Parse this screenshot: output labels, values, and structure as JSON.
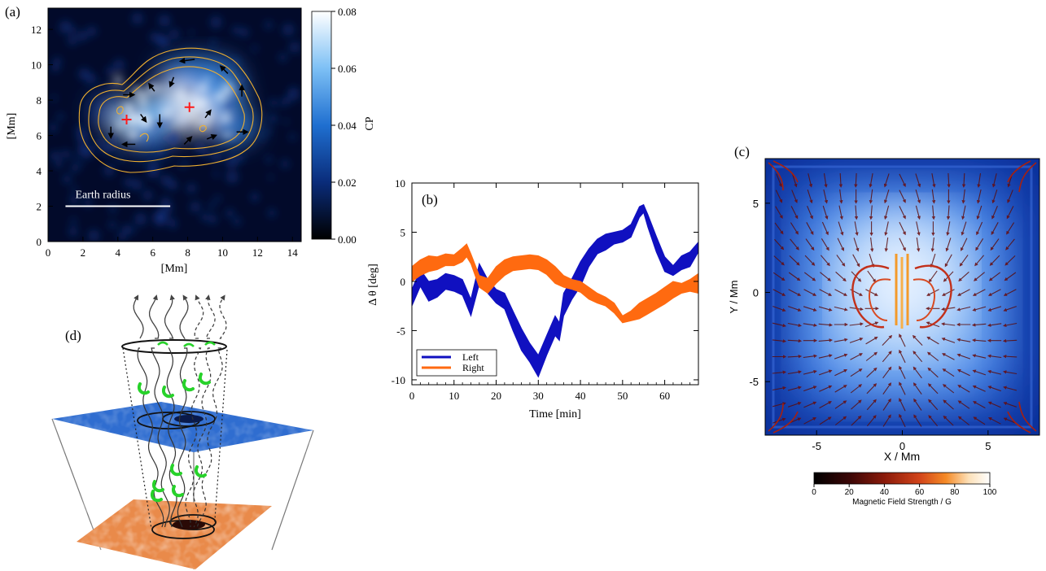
{
  "panel_labels": {
    "a": "(a)",
    "b": "(b)",
    "c": "(c)",
    "d": "(d)"
  },
  "chart_data": [
    {
      "type": "heatmap",
      "panel": "a",
      "xlabel": "[Mm]",
      "ylabel": "[Mm]",
      "xlim": [
        0,
        14.5
      ],
      "ylim": [
        0,
        13.2
      ],
      "xticks": [
        "0",
        "2",
        "4",
        "6",
        "8",
        "10",
        "12",
        "14"
      ],
      "yticks": [
        "0",
        "2",
        "4",
        "6",
        "8",
        "10",
        "12"
      ],
      "colorbar": {
        "label": "CP",
        "range": [
          0,
          0.08
        ],
        "ticks": [
          "0.00",
          "0.02",
          "0.04",
          "0.06",
          "0.08"
        ],
        "colors": [
          "#000000",
          "#0a2c7a",
          "#1f6fd0",
          "#7dc0f5",
          "#ffffff"
        ]
      },
      "scale_bar": {
        "label": "Earth radius",
        "x": [
          1.0,
          7.0
        ],
        "y": 2.0
      },
      "markers": [
        {
          "x": 4.5,
          "y": 6.9
        },
        {
          "x": 8.1,
          "y": 7.6
        }
      ],
      "blobs": [
        {
          "x": 4.7,
          "y": 6.9,
          "sx": 1.3,
          "sy": 1.1,
          "v": 0.07
        },
        {
          "x": 8.0,
          "y": 7.7,
          "sx": 2.0,
          "sy": 1.5,
          "v": 0.085
        },
        {
          "x": 6.3,
          "y": 7.3,
          "sx": 1.3,
          "sy": 1.1,
          "v": 0.055
        },
        {
          "x": 9.8,
          "y": 8.4,
          "sx": 1.5,
          "sy": 1.0,
          "v": 0.05
        },
        {
          "x": 8.6,
          "y": 9.6,
          "sx": 2.4,
          "sy": 0.9,
          "v": 0.045
        },
        {
          "x": 10.6,
          "y": 6.5,
          "sx": 1.4,
          "sy": 1.0,
          "v": 0.045
        },
        {
          "x": 5.8,
          "y": 5.7,
          "sx": 1.2,
          "sy": 0.7,
          "v": 0.035
        },
        {
          "x": 3.2,
          "y": 7.4,
          "sx": 0.8,
          "sy": 0.9,
          "v": 0.03
        }
      ],
      "flow_arrows": [
        {
          "x": 4.3,
          "y": 8.3,
          "dx": 0.6,
          "dy": 0
        },
        {
          "x": 6.1,
          "y": 8.5,
          "dx": -0.3,
          "dy": 0.4
        },
        {
          "x": 7.2,
          "y": 9.3,
          "dx": -0.2,
          "dy": -0.5
        },
        {
          "x": 8.4,
          "y": 10.3,
          "dx": -0.8,
          "dy": -0.1
        },
        {
          "x": 10.3,
          "y": 9.5,
          "dx": -0.4,
          "dy": 0.4
        },
        {
          "x": 11.1,
          "y": 8.2,
          "dx": 0,
          "dy": 0.6
        },
        {
          "x": 10.8,
          "y": 6.2,
          "dx": 0.6,
          "dy": 0
        },
        {
          "x": 9.1,
          "y": 5.8,
          "dx": 0.5,
          "dy": 0.2
        },
        {
          "x": 7.8,
          "y": 5.5,
          "dx": 0.4,
          "dy": 0.4
        },
        {
          "x": 5.0,
          "y": 5.5,
          "dx": -0.7,
          "dy": 0
        },
        {
          "x": 3.6,
          "y": 6.5,
          "dx": 0,
          "dy": -0.6
        },
        {
          "x": 5.3,
          "y": 7.2,
          "dx": 0.3,
          "dy": -0.4
        },
        {
          "x": 6.4,
          "y": 7.2,
          "dx": 0,
          "dy": -0.7
        },
        {
          "x": 9.0,
          "y": 7.0,
          "dx": 0.3,
          "dy": 0.4
        }
      ]
    },
    {
      "type": "area",
      "panel": "b",
      "xlabel": "Time [min]",
      "ylabel": "Δ θ [deg]",
      "xlim": [
        0,
        68
      ],
      "ylim": [
        -10.5,
        10
      ],
      "xticks": [
        0,
        10,
        20,
        30,
        40,
        50,
        60
      ],
      "yticks": [
        -10,
        -5,
        0,
        5,
        10
      ],
      "legend_position": "bottom-left",
      "series": [
        {
          "name": "Left",
          "color": "#1010c0",
          "x": [
            0,
            2,
            4,
            6,
            8,
            10,
            12,
            14,
            16,
            18,
            20,
            22,
            24,
            26,
            28,
            30,
            32,
            34,
            35,
            36,
            38,
            40,
            42,
            44,
            46,
            48,
            50,
            52,
            54,
            55,
            56,
            58,
            60,
            62,
            64,
            66,
            68
          ],
          "lower": [
            -2.5,
            -0.5,
            -2.0,
            -1.6,
            -0.8,
            -1.0,
            -1.4,
            -3.5,
            -0.3,
            -1.2,
            -2.2,
            -2.8,
            -5.0,
            -7.0,
            -8.2,
            -9.7,
            -7.5,
            -5.5,
            -6.0,
            -3.5,
            -1.8,
            -0.5,
            1.5,
            2.8,
            3.2,
            3.8,
            4.0,
            4.5,
            6.5,
            7.0,
            5.5,
            3.0,
            1.0,
            0.6,
            1.2,
            1.5,
            3.0
          ],
          "upper": [
            -0.8,
            1.2,
            0.0,
            0.2,
            0.8,
            0.6,
            0.2,
            -1.8,
            1.8,
            0.2,
            -0.8,
            -1.2,
            -3.0,
            -4.8,
            -6.3,
            -7.5,
            -5.5,
            -3.5,
            -4.2,
            -1.2,
            0.3,
            2.0,
            3.3,
            4.3,
            4.8,
            5.0,
            5.2,
            5.8,
            7.6,
            7.8,
            6.8,
            4.6,
            2.5,
            1.6,
            2.6,
            3.0,
            4.0
          ]
        },
        {
          "name": "Right",
          "color": "#ff6a10",
          "x": [
            0,
            2,
            4,
            6,
            8,
            10,
            12,
            13,
            14,
            16,
            18,
            20,
            22,
            24,
            26,
            28,
            30,
            32,
            34,
            36,
            38,
            40,
            42,
            44,
            46,
            48,
            50,
            52,
            54,
            56,
            58,
            60,
            62,
            64,
            66,
            68
          ],
          "lower": [
            0.0,
            0.6,
            1.0,
            1.2,
            1.6,
            1.6,
            2.0,
            2.5,
            1.8,
            -0.6,
            -1.2,
            -0.2,
            0.6,
            1.1,
            1.2,
            1.3,
            1.2,
            0.7,
            -0.2,
            -0.6,
            -0.8,
            -1.1,
            -1.8,
            -2.2,
            -2.5,
            -3.2,
            -4.2,
            -4.0,
            -3.8,
            -3.3,
            -2.8,
            -2.3,
            -1.7,
            -1.2,
            -1.0,
            -1.2
          ],
          "upper": [
            1.5,
            2.2,
            2.6,
            2.5,
            2.8,
            2.7,
            3.4,
            3.8,
            2.8,
            0.6,
            0.3,
            1.5,
            2.2,
            2.5,
            2.6,
            2.7,
            2.6,
            2.2,
            1.5,
            0.6,
            0.2,
            0.0,
            -0.6,
            -1.2,
            -1.6,
            -2.2,
            -3.5,
            -3.0,
            -2.2,
            -1.7,
            -1.2,
            -0.6,
            0.0,
            -0.2,
            0.2,
            0.8
          ]
        }
      ]
    },
    {
      "type": "heatmap",
      "panel": "c",
      "xlabel": "X / Mm",
      "ylabel": "Y / Mm",
      "xlim": [
        -8,
        8
      ],
      "ylim": [
        -8,
        7.5
      ],
      "xticks": [
        "-5",
        "0",
        "5"
      ],
      "yticks": [
        "-5",
        "0",
        "5"
      ],
      "background_colors": [
        "#e8f2ff",
        "#6fa6f0",
        "#1f55d6",
        "#0a2a8c"
      ],
      "colorbar": {
        "label": "Magnetic Field Strength / G",
        "range": [
          0,
          100
        ],
        "ticks": [
          "0",
          "20",
          "40",
          "60",
          "80",
          "100"
        ],
        "colors": [
          "#000000",
          "#3a0606",
          "#8a1a0a",
          "#d2441a",
          "#f58a26",
          "#fce0b8",
          "#ffffff"
        ]
      }
    },
    {
      "type": "diagram",
      "panel": "d",
      "upper_layer_color": "#2f6dd0",
      "lower_layer_color": "#e98a4a",
      "tube_count": 7,
      "tube_color": "#27d22a"
    }
  ]
}
